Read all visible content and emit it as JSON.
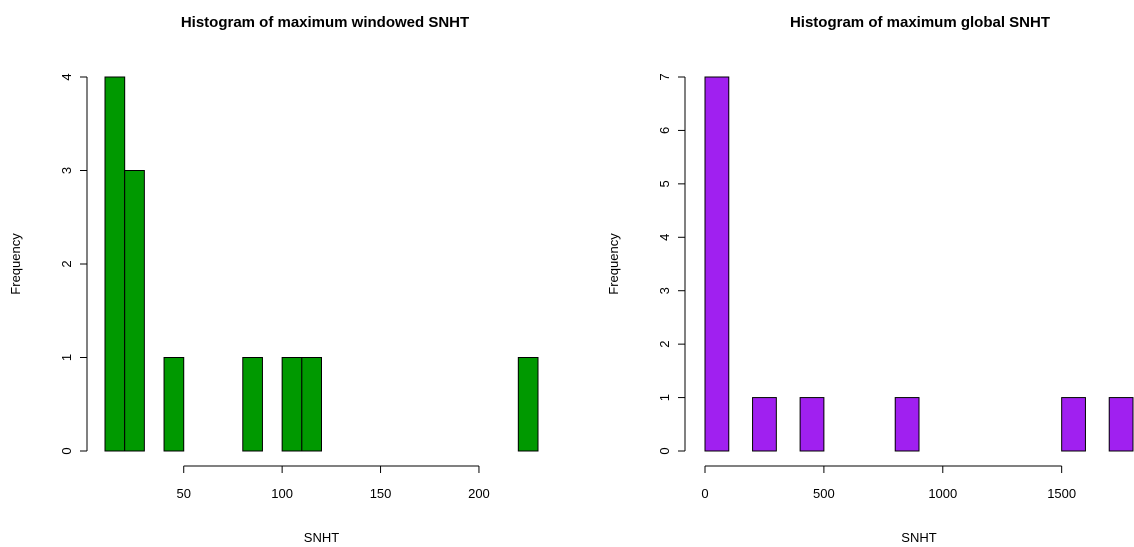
{
  "chart_data": [
    {
      "type": "histogram",
      "title": "Histogram of maximum windowed SNHT",
      "x_label": "SNHT",
      "y_label": "Frequency",
      "bins": [
        10,
        20,
        30,
        40,
        50,
        60,
        70,
        80,
        90,
        100,
        110,
        120,
        130,
        140,
        150,
        160,
        170,
        180,
        190,
        200,
        210,
        220,
        230
      ],
      "values": [
        4,
        3,
        0,
        1,
        0,
        0,
        0,
        1,
        0,
        1,
        1,
        0,
        0,
        0,
        0,
        0,
        0,
        0,
        0,
        0,
        0,
        1
      ],
      "color": "#009900",
      "xlim": [
        10,
        230
      ],
      "xticks": [
        50,
        100,
        150,
        200
      ],
      "ylim": [
        0,
        4
      ],
      "yticks": [
        0,
        1,
        2,
        3,
        4
      ]
    },
    {
      "type": "histogram",
      "title": "Histogram of maximum global SNHT",
      "x_label": "SNHT",
      "y_label": "Frequency",
      "bins": [
        0,
        100,
        200,
        300,
        400,
        500,
        600,
        700,
        800,
        900,
        1000,
        1100,
        1200,
        1300,
        1400,
        1500,
        1600,
        1700,
        1800
      ],
      "values": [
        7,
        0,
        1,
        0,
        1,
        0,
        0,
        0,
        1,
        0,
        0,
        0,
        0,
        0,
        0,
        1,
        0,
        1
      ],
      "color": "#a020f0",
      "xlim": [
        0,
        1800
      ],
      "xticks": [
        0,
        500,
        1000,
        1500
      ],
      "ylim": [
        0,
        7
      ],
      "yticks": [
        0,
        1,
        2,
        3,
        4,
        5,
        6,
        7
      ]
    }
  ]
}
